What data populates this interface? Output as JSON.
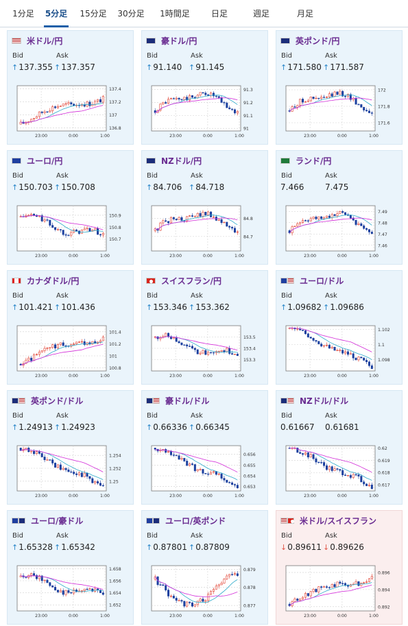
{
  "tabs": [
    "1分足",
    "5分足",
    "15分足",
    "30分足",
    "1時間足",
    "日足",
    "週足",
    "月足"
  ],
  "active_tab": 1,
  "labels": {
    "bid": "Bid",
    "ask": "Ask"
  },
  "colors": {
    "up": "#e03b2b",
    "down": "#1a3f9e",
    "ma1": "#d22ad8",
    "ma2": "#2aa9c9",
    "grid": "#cfcfcf"
  },
  "pairs": [
    {
      "name": "米ドル/円",
      "flag": "us-flag",
      "bid": "137.355",
      "ask": "137.357",
      "dir": "up",
      "chart_data": {
        "type": "candlestick",
        "x_ticks": [
          "23:00",
          "0:00",
          "1:00"
        ],
        "y_ticks": [
          "137.4",
          "137.2",
          "137",
          "136.8"
        ],
        "ylim": [
          136.75,
          137.45
        ],
        "trend": "rise"
      }
    },
    {
      "name": "豪ドル/円",
      "flag": "au-flag",
      "bid": "91.140",
      "ask": "91.145",
      "dir": "up",
      "chart_data": {
        "type": "candlestick",
        "x_ticks": [
          "23:00",
          "0:00",
          "1:00"
        ],
        "y_ticks": [
          "91.3",
          "91.2",
          "91.1",
          "91"
        ],
        "ylim": [
          90.98,
          91.33
        ],
        "trend": "hump"
      }
    },
    {
      "name": "英ポンド/円",
      "flag": "gb-flag",
      "bid": "171.580",
      "ask": "171.587",
      "dir": "up",
      "chart_data": {
        "type": "candlestick",
        "x_ticks": [
          "23:00",
          "0:00",
          "1:00"
        ],
        "y_ticks": [
          "172",
          "171.8",
          "171.6"
        ],
        "ylim": [
          171.5,
          172.05
        ],
        "trend": "hump"
      }
    },
    {
      "name": "ユーロ/円",
      "flag": "eu-flag",
      "bid": "150.703",
      "ask": "150.708",
      "dir": "up",
      "chart_data": {
        "type": "candlestick",
        "x_ticks": [
          "23:00",
          "0:00",
          "1:00"
        ],
        "y_ticks": [
          "150.9",
          "150.8",
          "150.7"
        ],
        "ylim": [
          150.6,
          150.98
        ],
        "trend": "fall"
      }
    },
    {
      "name": "NZドル/円",
      "flag": "nz-flag",
      "bid": "84.706",
      "ask": "84.718",
      "dir": "up",
      "chart_data": {
        "type": "candlestick",
        "x_ticks": [
          "23:00",
          "0:00",
          "1:00"
        ],
        "y_ticks": [
          "84.8",
          "84.7"
        ],
        "ylim": [
          84.62,
          84.87
        ],
        "trend": "hump"
      }
    },
    {
      "name": "ランド/円",
      "flag": "za-flag",
      "bid": "7.466",
      "ask": "7.475",
      "dir": "none",
      "chart_data": {
        "type": "candlestick",
        "x_ticks": [
          "23:00",
          "0:00",
          "1:00"
        ],
        "y_ticks": [
          "7.49",
          "7.48",
          "7.47",
          "7.46"
        ],
        "ylim": [
          7.455,
          7.495
        ],
        "trend": "hump"
      }
    },
    {
      "name": "カナダドル/円",
      "flag": "ca-flag",
      "bid": "101.421",
      "ask": "101.436",
      "dir": "up",
      "chart_data": {
        "type": "candlestick",
        "x_ticks": [
          "23:00",
          "0:00",
          "1:00"
        ],
        "y_ticks": [
          "101.4",
          "101.2",
          "101",
          "100.8"
        ],
        "ylim": [
          100.75,
          101.5
        ],
        "trend": "rise"
      }
    },
    {
      "name": "スイスフラン/円",
      "flag": "ch-flag",
      "bid": "153.346",
      "ask": "153.362",
      "dir": "up",
      "chart_data": {
        "type": "candlestick",
        "x_ticks": [
          "23:00",
          "0:00",
          "1:00"
        ],
        "y_ticks": [
          "153.5",
          "153.4",
          "153.3"
        ],
        "ylim": [
          153.2,
          153.6
        ],
        "trend": "fall"
      }
    },
    {
      "name": "ユーロ/ドル",
      "flag": "euus-flag",
      "bid": "1.09682",
      "ask": "1.09686",
      "dir": "up",
      "chart_data": {
        "type": "candlestick",
        "x_ticks": [
          "23:00",
          "0:00",
          "1:00"
        ],
        "y_ticks": [
          "1.102",
          "1.1",
          "1.098"
        ],
        "ylim": [
          1.0965,
          1.1025
        ],
        "trend": "decline"
      }
    },
    {
      "name": "英ポンド/ドル",
      "flag": "gbus-flag",
      "bid": "1.24913",
      "ask": "1.24923",
      "dir": "up",
      "chart_data": {
        "type": "candlestick",
        "x_ticks": [
          "23:00",
          "0:00",
          "1:00"
        ],
        "y_ticks": [
          "1.254",
          "1.252",
          "1.25"
        ],
        "ylim": [
          1.2485,
          1.2555
        ],
        "trend": "decline"
      }
    },
    {
      "name": "豪ドル/ドル",
      "flag": "auus-flag",
      "bid": "0.66336",
      "ask": "0.66345",
      "dir": "up",
      "chart_data": {
        "type": "candlestick",
        "x_ticks": [
          "23:00",
          "0:00",
          "1:00"
        ],
        "y_ticks": [
          "0.656",
          "0.655",
          "0.654",
          "0.653"
        ],
        "ylim": [
          0.6526,
          0.6568
        ],
        "trend": "decline"
      }
    },
    {
      "name": "NZドル/ドル",
      "flag": "nzus-flag",
      "bid": "0.61667",
      "ask": "0.61681",
      "dir": "none",
      "chart_data": {
        "type": "candlestick",
        "x_ticks": [
          "23:00",
          "0:00",
          "1:00"
        ],
        "y_ticks": [
          "0.62",
          "0.619",
          "0.618",
          "0.617"
        ],
        "ylim": [
          0.6165,
          0.6202
        ],
        "trend": "decline"
      }
    },
    {
      "name": "ユーロ/豪ドル",
      "flag": "euau-flag",
      "bid": "1.65328",
      "ask": "1.65342",
      "dir": "up",
      "chart_data": {
        "type": "candlestick",
        "x_ticks": [
          "23:00",
          "0:00",
          "1:00"
        ],
        "y_ticks": [
          "1.658",
          "1.656",
          "1.654",
          "1.652"
        ],
        "ylim": [
          1.651,
          1.6585
        ],
        "trend": "fall"
      }
    },
    {
      "name": "ユーロ/英ポンド",
      "flag": "eugb-flag",
      "bid": "0.87801",
      "ask": "0.87809",
      "dir": "up",
      "chart_data": {
        "type": "candlestick",
        "x_ticks": [
          "23:00",
          "0:00",
          "1:00"
        ],
        "y_ticks": [
          "0.879",
          "0.878",
          "0.877"
        ],
        "ylim": [
          0.8767,
          0.8792
        ],
        "trend": "dip"
      }
    },
    {
      "name": "米ドル/スイスフラン",
      "flag": "usch-flag",
      "bid": "0.89611",
      "ask": "0.89626",
      "dir": "down",
      "chart_data": {
        "type": "candlestick",
        "x_ticks": [
          "23:00",
          "0:00",
          "1:00"
        ],
        "y_ticks": [
          "0.896",
          "0.894",
          "0.892"
        ],
        "ylim": [
          0.8915,
          0.8968
        ],
        "trend": "rise"
      }
    }
  ]
}
